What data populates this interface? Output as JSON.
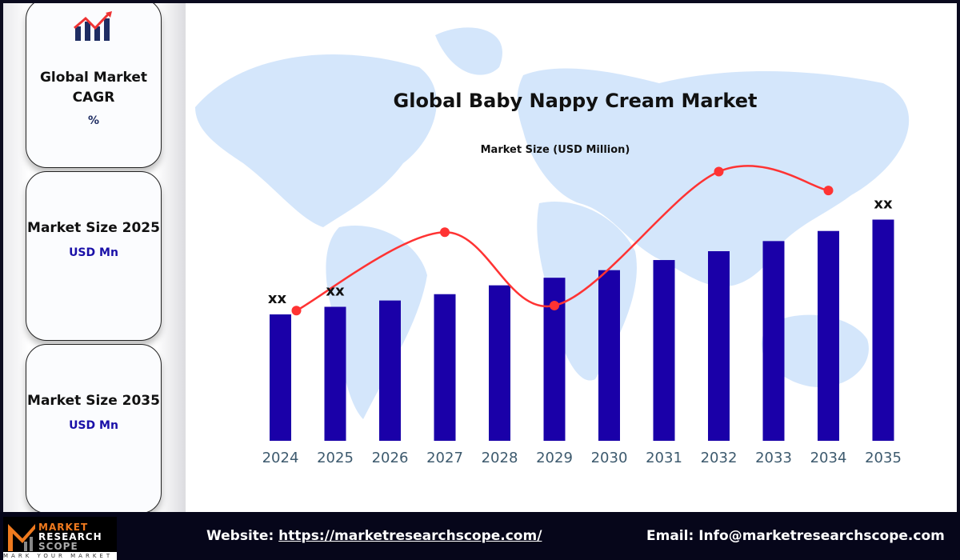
{
  "cards": [
    {
      "title": "Global Market CAGR",
      "value": "%",
      "icon": "bar-chart-growth-icon"
    },
    {
      "title": "Market Size 2025",
      "value": "USD Mn"
    },
    {
      "title": "Market Size 2035",
      "value": "USD Mn"
    }
  ],
  "footer": {
    "website_label": "Website:",
    "website_url": "https://marketresearchscope.com/",
    "email_label": "Email:",
    "email": "Info@marketresearchscope.com",
    "logo_text": "MARKET RESEARCH SCOPE",
    "logo_tagline": "MARK YOUR MARKET"
  },
  "colors": {
    "bar": "#1a00a8",
    "line": "#ff3333",
    "map": "#d4e6fb",
    "footer": "#06061a"
  },
  "chart_data": {
    "type": "bar",
    "title": "Global Baby Nappy Cream Market",
    "ylabel": "Market Size (USD Million)",
    "categories": [
      "2024",
      "2025",
      "2026",
      "2027",
      "2028",
      "2029",
      "2030",
      "2031",
      "2032",
      "2033",
      "2034",
      "2035"
    ],
    "values": [
      100,
      106,
      111,
      116,
      123,
      129,
      135,
      143,
      150,
      158,
      166,
      175
    ],
    "ylim": [
      0,
      280
    ],
    "data_labels": [
      {
        "category": "2024",
        "text": "xx"
      },
      {
        "category": "2025",
        "text": "xx"
      },
      {
        "category": "2035",
        "text": "xx"
      }
    ],
    "trend_line": {
      "categories": [
        "2024",
        "2027",
        "2029",
        "2032",
        "2034"
      ],
      "values": [
        103,
        165,
        107,
        213,
        198
      ]
    },
    "grid": false
  }
}
